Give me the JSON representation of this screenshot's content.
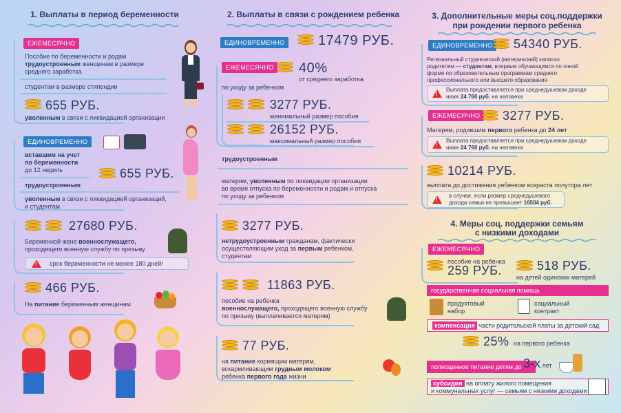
{
  "col1": {
    "title": "1. Выплаты в период беременности",
    "tag1": "ЕЖЕМЕСЯЧНО",
    "t1a": "Пособие по беременности и родам",
    "t1b_bold": "трудоустроенным",
    "t1b": " женщинам в размере",
    "t1c": "среднего заработка",
    "t1d": "студентам в размере стипендии",
    "amount1": "655 РУБ.",
    "t1e_bold": "уволенным",
    "t1e": " в связи с ликвидацией организации",
    "tag2": "ЕДИНОВРЕМЕННО",
    "t2a": "вставшим на учет",
    "t2b": "по беременности",
    "t2c": "до 12 недель",
    "amount2": "655 РУБ.",
    "t2d": "трудоустроенным",
    "t2e_bold": "уволенным",
    "t2e": " в связи с ликвидацией организаций,",
    "t2f": "и студентам",
    "amount3": "27680 РУБ.",
    "t3a": "Беременной жене ",
    "t3a_bold": "военнослужащего,",
    "t3b": "проходящего военную службу по призыву",
    "warn1": "срок беременности не менее 180 дней!",
    "amount4": "466 РУБ.",
    "t4a": "На ",
    "t4a_bold": "питание",
    "t4a2": " беременным женщинам"
  },
  "col2": {
    "title": "2. Выплаты в связи с рождением ребенка",
    "tag1": "ЕДИНОВРЕМЕННО",
    "amount1": "17479 РУБ.",
    "tag2": "ЕЖЕМЕСЯЧНО",
    "pct": "40%",
    "pct_sub": "от среднего заработка",
    "pct_sub2": "по уходу за ребенком",
    "amount2": "3277 РУБ.",
    "amount2_sub": "минимальный размер пособия",
    "amount3": "26152 РУБ.",
    "amount3_sub": "максимальный размер пособия",
    "t1": "трудоустроенным",
    "t2a": "матерям, ",
    "t2a_bold": "уволенным",
    "t2a2": " по ликвидации организации",
    "t2b": "во время отпуска по беременности и родам и отпуска",
    "t2c": "по уходу за ребенком",
    "amount4": "3277 РУБ.",
    "t3a_bold": "нетрудоустроенным",
    "t3a": " гражданам, фактически",
    "t3b": "осуществляющим уход за ",
    "t3b_bold": "первым",
    "t3b2": " ребенком,",
    "t3c": "студентам",
    "amount5": "11863 РУБ.",
    "t4a": "пособие на ребенка",
    "t4b_bold": "военнослужащего,",
    "t4b": " проходящего военную службу",
    "t4c": "по призыву (выплачивается матерям)",
    "amount6": "77 РУБ.",
    "t5a": "на ",
    "t5a_bold": "питание",
    "t5a2": " кормящим матерям,",
    "t5b": "вскармливающим ",
    "t5b_bold": "грудным молоком",
    "t5c": "ребенка ",
    "t5c_bold": "первого года",
    "t5c2": " жизни"
  },
  "col3": {
    "title1": "3. Дополнительные меры соц.поддержки",
    "title2": "при рождении первого ребенка",
    "tag1": "ЕДИНОВРЕМЕННО",
    "amount1": "54340 РУБ.",
    "t1a": "Региональный  студенческий (материнский) капитал",
    "t1b": "родителям — ",
    "t1b_bold": "студентам",
    "t1b2": ", впервые обучающимся по очной",
    "t1c": "форме по образовательным программам среднего",
    "t1d": "профессионального или высшего образования",
    "warn1a": "Выплата предоставляется при среднедушевом доходе",
    "warn1b": "ниже ",
    "warn1b_bold": "24 760 руб.",
    "warn1b2": " на человека",
    "tag2": "ЕЖЕМЕСЯЧНО",
    "amount2": "3277 РУБ.",
    "t2a": "Матерям, родившим ",
    "t2a_bold": "первого",
    "t2a2": " ребенка до ",
    "t2a_bold2": "24 лет",
    "warn2a": "Выплата предоставляется при среднедушевом доходе",
    "warn2b": "ниже ",
    "warn2b_bold": "24 760 руб.",
    "warn2b2": " на человека",
    "amount3": "10214 РУБ.",
    "t3a": "выплата до достижения ребенком возраста полутора лет",
    "warn3a": "в случае, если размер среднедушевого",
    "warn3b": "дохода семьи не превышает ",
    "warn3b_bold": "16504 руб.",
    "title3": "4. Меры соц. поддержки семьям",
    "title4": "с низкими доходами",
    "tag3": "ЕЖЕМЕСЯЧНО",
    "t4a": "пособие на ребенка",
    "amount4": "259 РУБ.",
    "amount5": "518 РУБ.",
    "t4b": "на детей одиноких матерей",
    "bar1": "государственная социальная помощь",
    "item1a": "продуктовый",
    "item1b": "набор",
    "item2a": "социальный",
    "item2b": "контракт",
    "bar2_bold": "компенсация",
    "bar2": " части родительской платы за  детский сад",
    "pct": "25%",
    "pct_sub": "на первого ребенка",
    "bar3": "полноценное питание детям до ",
    "bar3_big": "3-х",
    "bar3_end": " лет",
    "bar4_bold": "субсидия",
    "bar4": " на оплату жилого помещения",
    "bar4b": "и коммунальных услуг",
    "bar4c": " — семьям с низкими доходами"
  }
}
